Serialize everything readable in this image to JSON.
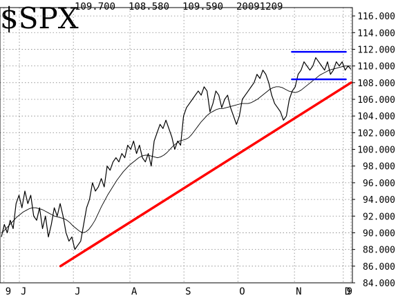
{
  "chart_data": {
    "type": "line",
    "symbol": "$SPX",
    "header_values": [
      "109.700",
      "108.580",
      "109.590",
      "20091209"
    ],
    "ylim": [
      84,
      117
    ],
    "y_ticks": [
      84,
      86,
      88,
      90,
      92,
      94,
      96,
      98,
      100,
      102,
      104,
      106,
      108,
      110,
      112,
      114,
      116
    ],
    "y_tick_labels": [
      "84.000",
      "86.000",
      "88.000",
      "90.000",
      "92.000",
      "94.000",
      "96.000",
      "98.000",
      "100.000",
      "102.000",
      "104.000",
      "106.000",
      "108.000",
      "110.000",
      "112.000",
      "114.000",
      "116.000"
    ],
    "x_range": [
      0,
      136
    ],
    "x_ticks": [
      {
        "label": "9",
        "x": 1
      },
      {
        "label": "J",
        "x": 7
      },
      {
        "label": "J",
        "x": 28
      },
      {
        "label": "A",
        "x": 50
      },
      {
        "label": "S",
        "x": 71
      },
      {
        "label": "O",
        "x": 92
      },
      {
        "label": "N",
        "x": 114
      },
      {
        "label": "D",
        "x": 133
      },
      {
        "label": "9",
        "x": 136
      }
    ],
    "grid": true,
    "series": [
      {
        "values": [
          89.5,
          91,
          90,
          91.5,
          90.5,
          93.5,
          94.5,
          93,
          95,
          93.5,
          94.5,
          92,
          91.5,
          93,
          90.5,
          92,
          89.5,
          91,
          93,
          92,
          93.5,
          92,
          90,
          89,
          89.5,
          88,
          88.5,
          89,
          91,
          93,
          94,
          96,
          95,
          95.5,
          96.5,
          95.5,
          98,
          97.5,
          98.5,
          99,
          98.5,
          99.5,
          99,
          100.5,
          100,
          101,
          99.5,
          100.5,
          99,
          98.5,
          99.5,
          98,
          101,
          102,
          103,
          102.5,
          103.5,
          102.5,
          101.5,
          100,
          101,
          100.5,
          104,
          105,
          105.5,
          106,
          106.5,
          107,
          106.5,
          107.5,
          107,
          104.5,
          105.5,
          107,
          106.5,
          105,
          106,
          106.5,
          105,
          104,
          103,
          104,
          106,
          106.5,
          107,
          107.5,
          108,
          109,
          108.5,
          109.5,
          109,
          108,
          106.5,
          105.5,
          105,
          104.5,
          103.5,
          104,
          106,
          107,
          107.5,
          109,
          109.5,
          110.5,
          110,
          109.5,
          110,
          111,
          110.5,
          110,
          109.5,
          110.5,
          109,
          109.5,
          110.5,
          110,
          110.5,
          109.5,
          110,
          109.6
        ]
      },
      {
        "values": [
          90,
          90.3,
          90.7,
          91.1,
          91.5,
          91.9,
          92.2,
          92.5,
          92.7,
          92.9,
          93,
          93,
          92.9,
          92.8,
          92.6,
          92.4,
          92.2,
          92,
          91.9,
          91.8,
          91.7,
          91.5,
          91.2,
          90.8,
          90.5,
          90.2,
          90,
          90.1,
          90.4,
          90.9,
          91.5,
          92.3,
          93.1,
          93.8,
          94.5,
          95.1,
          95.7,
          96.3,
          96.8,
          97.3,
          97.7,
          98.1,
          98.4,
          98.7,
          99,
          99.2,
          99.3,
          99.3,
          99.2,
          99.1,
          99,
          99.1,
          99.3,
          99.6,
          100,
          100.4,
          100.7,
          101,
          101.1,
          101.2,
          101.4,
          101.8,
          102.3,
          102.8,
          103.3,
          103.7,
          104.1,
          104.4,
          104.6,
          104.8,
          104.9,
          104.9,
          105,
          105.1,
          105.2,
          105.3,
          105.4,
          105.5,
          105.5,
          105.5,
          105.6,
          105.8,
          106,
          106.3,
          106.6,
          106.9,
          107.2,
          107.4,
          107.5,
          107.5,
          107.4,
          107.2,
          107,
          106.9,
          106.8,
          106.9,
          107.1,
          107.4,
          107.7,
          108,
          108.3,
          108.6,
          108.9,
          109.1,
          109.3,
          109.5,
          109.6,
          109.7,
          109.8,
          109.9,
          110,
          110,
          110
        ]
      }
    ],
    "trendlines": [
      {
        "color": "#ff0000",
        "x1": 23,
        "y1": 86,
        "x2": 136,
        "y2": 108
      },
      {
        "color": "#0000ff",
        "x1": 113,
        "y1": 111.7,
        "x2": 134,
        "y2": 111.7
      },
      {
        "color": "#0000ff",
        "x1": 113,
        "y1": 108.4,
        "x2": 134,
        "y2": 108.4
      }
    ]
  }
}
